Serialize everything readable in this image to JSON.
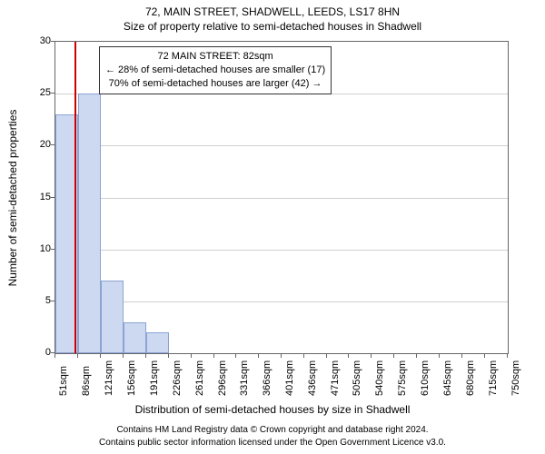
{
  "titles": {
    "line1": "72, MAIN STREET, SHADWELL, LEEDS, LS17 8HN",
    "line2": "Size of property relative to semi-detached houses in Shadwell"
  },
  "chart": {
    "type": "histogram",
    "bar_fill": "#cdd9f0",
    "bar_stroke": "#8aa3d4",
    "grid_color": "#d0d0d0",
    "border_color": "#666666",
    "background": "#ffffff",
    "reference_line": {
      "x": 82,
      "color": "#cc0000",
      "width": 2
    },
    "x": {
      "min": 51,
      "max": 750,
      "step": 35,
      "unit": "sqm"
    },
    "y": {
      "min": 0,
      "max": 30,
      "step": 5
    },
    "yticks": [
      0,
      5,
      10,
      15,
      20,
      25,
      30
    ],
    "xticks": [
      51,
      86,
      121,
      156,
      191,
      226,
      261,
      296,
      331,
      366,
      401,
      436,
      471,
      505,
      540,
      575,
      610,
      645,
      680,
      715,
      750
    ],
    "bars": [
      {
        "x0": 51,
        "x1": 86,
        "value": 23
      },
      {
        "x0": 86,
        "x1": 121,
        "value": 25
      },
      {
        "x0": 121,
        "x1": 156,
        "value": 7
      },
      {
        "x0": 156,
        "x1": 191,
        "value": 3
      },
      {
        "x0": 191,
        "x1": 226,
        "value": 2
      }
    ]
  },
  "axis_labels": {
    "x": "Distribution of semi-detached houses by size in Shadwell",
    "y": "Number of semi-detached properties"
  },
  "annotation": {
    "line1": "72 MAIN STREET: 82sqm",
    "line2": "← 28% of semi-detached houses are smaller (17)",
    "line3": "70% of semi-detached houses are larger (42) →"
  },
  "footer": {
    "line1": "Contains HM Land Registry data © Crown copyright and database right 2024.",
    "line2": "Contains public sector information licensed under the Open Government Licence v3.0."
  }
}
